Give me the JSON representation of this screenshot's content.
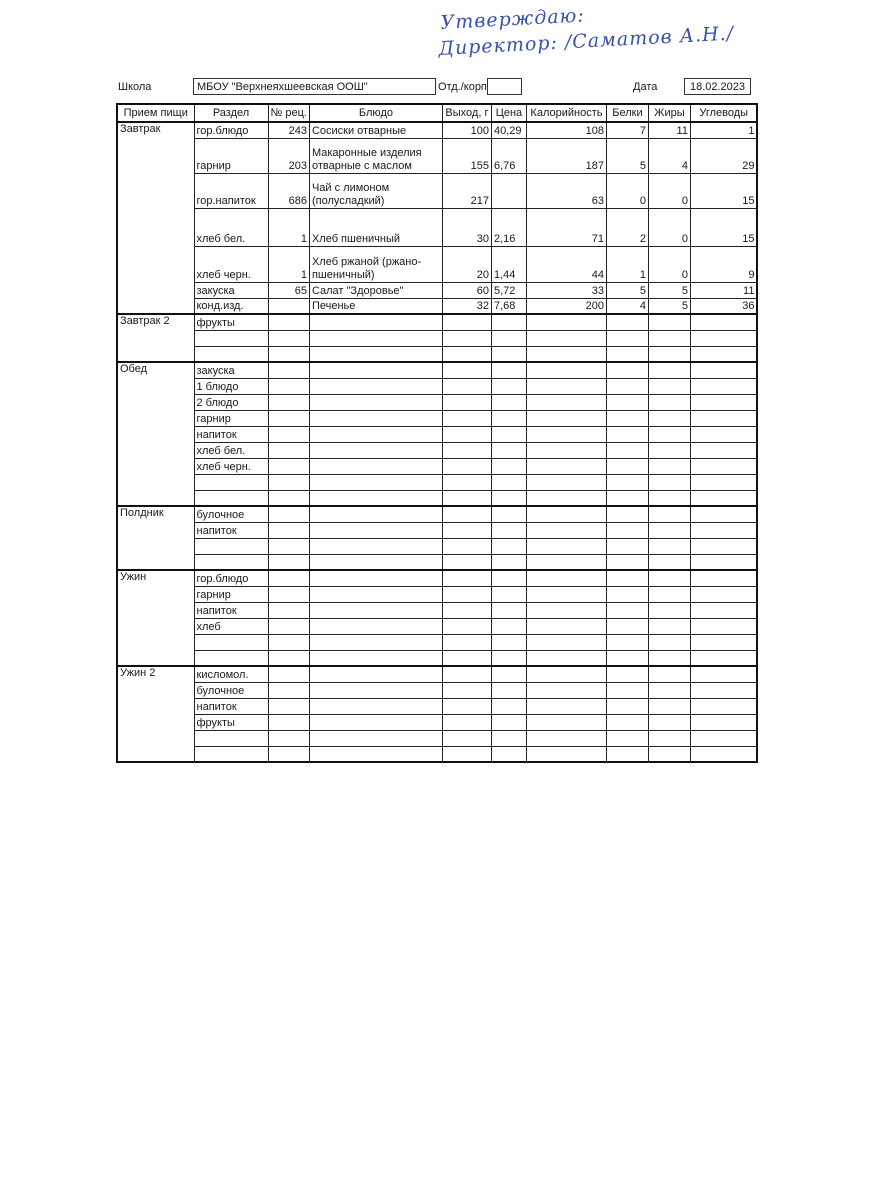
{
  "approval": {
    "line1": "Утверждаю:",
    "line2": "Директор: /Саматов А.Н./"
  },
  "header": {
    "school_label": "Школа",
    "school_value": "МБОУ \"Верхнеяхшеевская ООШ\"",
    "dept_label": "Отд./корп",
    "dept_value": "",
    "date_label": "Дата",
    "date_value": "18.02.2023"
  },
  "columns": [
    "Прием пищи",
    "Раздел",
    "№ рец.",
    "Блюдо",
    "Выход, г",
    "Цена",
    "Калорийность",
    "Белки",
    "Жиры",
    "Углеводы"
  ],
  "meals": [
    {
      "name": "Завтрак",
      "rows": [
        {
          "section": "гор.блюдо",
          "recipe": "243",
          "dish": "Сосиски отварные",
          "yield": "100",
          "price": "40,29",
          "kcal": "108",
          "protein": "7",
          "fat": "11",
          "carbs": "1"
        },
        {
          "section": "гарнир",
          "recipe": "203",
          "dish": "Макаронные изделия отварные с маслом",
          "yield": "155",
          "price": "6,76",
          "kcal": "187",
          "protein": "5",
          "fat": "4",
          "carbs": "29"
        },
        {
          "section": "гор.напиток",
          "recipe": "686",
          "dish": "Чай с лимоном (полусладкий)",
          "yield": "217",
          "price": "",
          "kcal": "63",
          "protein": "0",
          "fat": "0",
          "carbs": "15"
        },
        {
          "section": "хлеб бел.",
          "recipe": "1",
          "dish": "Хлеб пшеничный",
          "yield": "30",
          "price": "2,16",
          "kcal": "71",
          "protein": "2",
          "fat": "0",
          "carbs": "15"
        },
        {
          "section": "хлеб черн.",
          "recipe": "1",
          "dish": "Хлеб ржаной (ржано-пшеничный)",
          "yield": "20",
          "price": "1,44",
          "kcal": "44",
          "protein": "1",
          "fat": "0",
          "carbs": "9"
        },
        {
          "section": "закуска",
          "recipe": "65",
          "dish": "Салат \"Здоровье\"",
          "yield": "60",
          "price": "5,72",
          "kcal": "33",
          "protein": "5",
          "fat": "5",
          "carbs": "11"
        },
        {
          "section": "конд.изд.",
          "recipe": "",
          "dish": "Печенье",
          "yield": "32",
          "price": "7,68",
          "kcal": "200",
          "protein": "4",
          "fat": "5",
          "carbs": "36"
        }
      ]
    },
    {
      "name": "Завтрак 2",
      "rows": [
        {
          "section": "фрукты"
        },
        {
          "section": ""
        },
        {
          "section": ""
        }
      ]
    },
    {
      "name": "Обед",
      "rows": [
        {
          "section": "закуска"
        },
        {
          "section": "1 блюдо"
        },
        {
          "section": "2 блюдо"
        },
        {
          "section": "гарнир"
        },
        {
          "section": "напиток"
        },
        {
          "section": "хлеб бел."
        },
        {
          "section": "хлеб черн."
        },
        {
          "section": ""
        },
        {
          "section": ""
        }
      ]
    },
    {
      "name": "Полдник",
      "rows": [
        {
          "section": "булочное"
        },
        {
          "section": "напиток"
        },
        {
          "section": ""
        },
        {
          "section": ""
        }
      ]
    },
    {
      "name": "Ужин",
      "rows": [
        {
          "section": "гор.блюдо"
        },
        {
          "section": "гарнир"
        },
        {
          "section": "напиток"
        },
        {
          "section": "хлеб"
        },
        {
          "section": ""
        },
        {
          "section": ""
        }
      ]
    },
    {
      "name": "Ужин 2",
      "rows": [
        {
          "section": "кисломол."
        },
        {
          "section": "булочное"
        },
        {
          "section": "напиток"
        },
        {
          "section": "фрукты"
        },
        {
          "section": ""
        },
        {
          "section": ""
        }
      ]
    }
  ]
}
